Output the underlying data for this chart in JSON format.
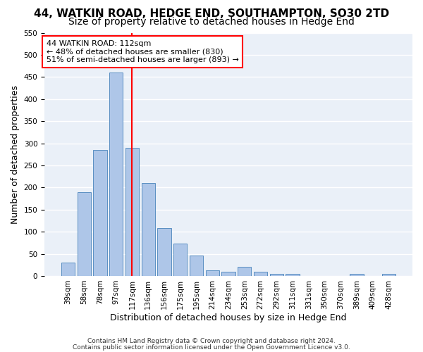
{
  "title1": "44, WATKIN ROAD, HEDGE END, SOUTHAMPTON, SO30 2TD",
  "title2": "Size of property relative to detached houses in Hedge End",
  "xlabel": "Distribution of detached houses by size in Hedge End",
  "ylabel": "Number of detached properties",
  "footnote1": "Contains HM Land Registry data © Crown copyright and database right 2024.",
  "footnote2": "Contains public sector information licensed under the Open Government Licence v3.0.",
  "bins": [
    "39sqm",
    "58sqm",
    "78sqm",
    "97sqm",
    "117sqm",
    "136sqm",
    "156sqm",
    "175sqm",
    "195sqm",
    "214sqm",
    "234sqm",
    "253sqm",
    "272sqm",
    "292sqm",
    "311sqm",
    "331sqm",
    "350sqm",
    "370sqm",
    "389sqm",
    "409sqm",
    "428sqm"
  ],
  "values": [
    30,
    190,
    285,
    460,
    290,
    210,
    108,
    73,
    46,
    12,
    10,
    20,
    9,
    5,
    5,
    0,
    0,
    0,
    5,
    0,
    5
  ],
  "bar_color": "#aec6e8",
  "bar_edge_color": "#5a8fc2",
  "vline_x": 4,
  "vline_color": "red",
  "annotation_text": "44 WATKIN ROAD: 112sqm\n← 48% of detached houses are smaller (830)\n51% of semi-detached houses are larger (893) →",
  "annotation_box_color": "white",
  "annotation_box_edge_color": "red",
  "ylim": [
    0,
    550
  ],
  "yticks": [
    0,
    50,
    100,
    150,
    200,
    250,
    300,
    350,
    400,
    450,
    500,
    550
  ],
  "background_color": "#eaf0f8",
  "grid_color": "white",
  "title1_fontsize": 11,
  "title2_fontsize": 10,
  "xlabel_fontsize": 9,
  "ylabel_fontsize": 9,
  "tick_fontsize": 7.5,
  "annot_fontsize": 8
}
